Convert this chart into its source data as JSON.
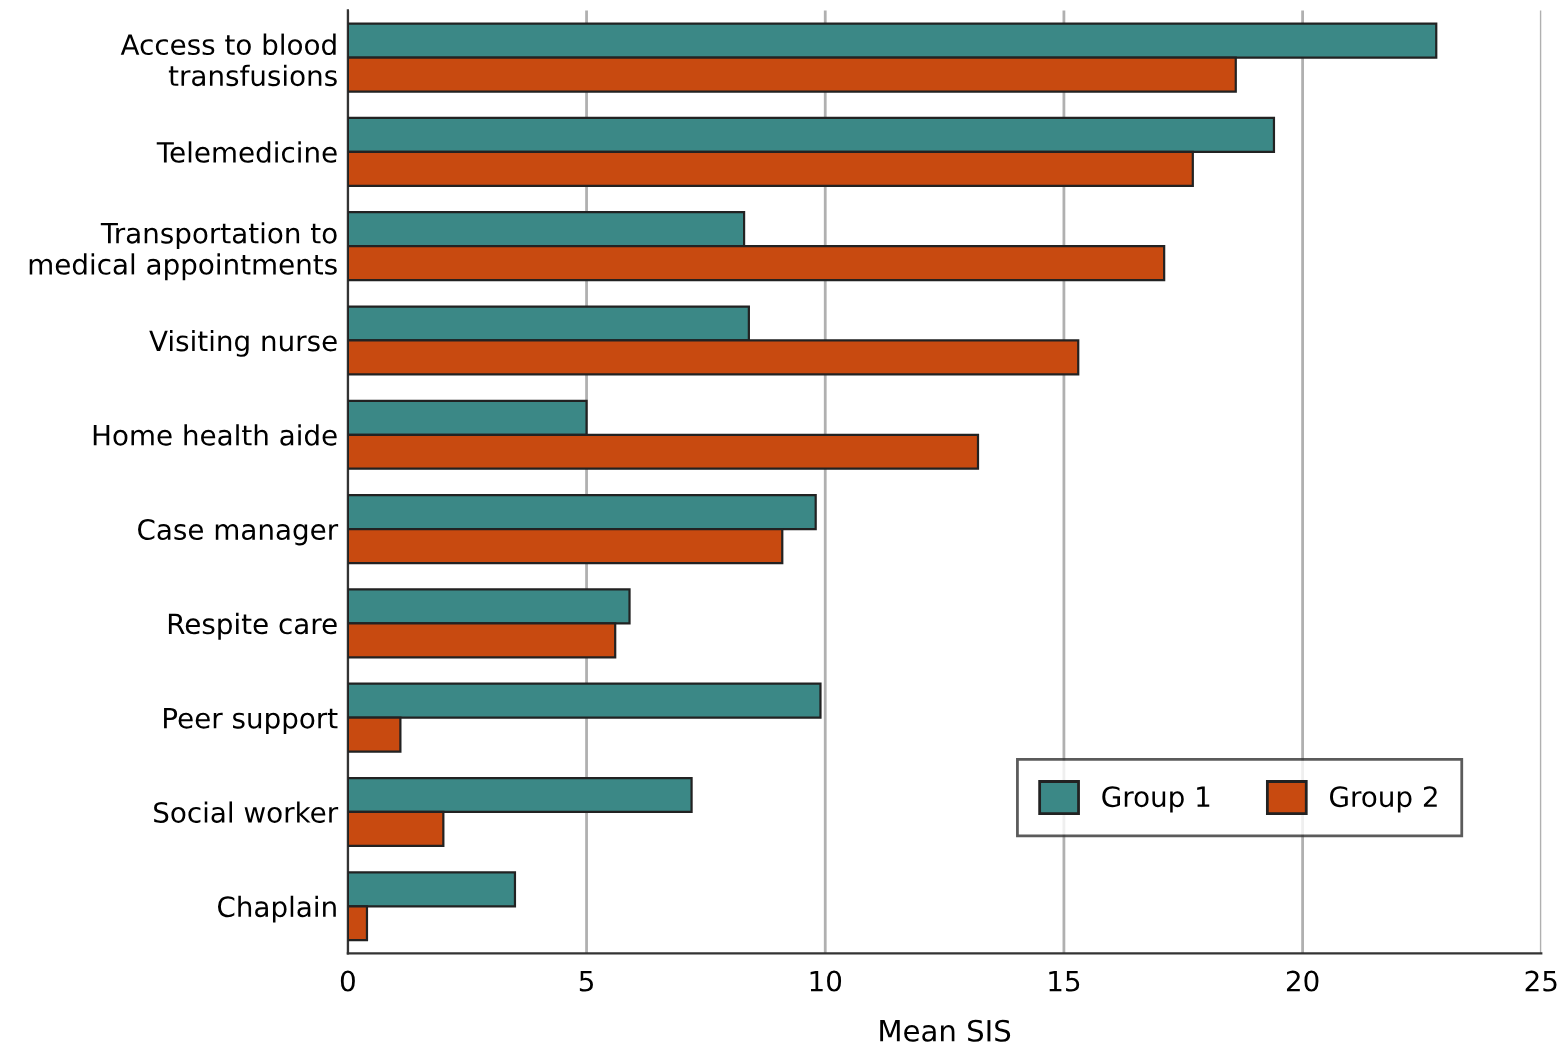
{
  "chart_data": {
    "type": "bar",
    "orientation": "horizontal",
    "xlabel": "Mean SIS",
    "categories": [
      "Access to blood\ntransfusions",
      "Telemedicine",
      "Transportation to\nmedical appointments",
      "Visiting nurse",
      "Home health aide",
      "Case manager",
      "Respite care",
      "Peer support",
      "Social worker",
      "Chaplain"
    ],
    "series": [
      {
        "name": "Group 1",
        "color": "#3b8886",
        "values": [
          22.8,
          19.4,
          8.3,
          8.4,
          5.0,
          9.8,
          5.9,
          9.9,
          7.2,
          3.5
        ]
      },
      {
        "name": "Group 2",
        "color": "#c84a10",
        "values": [
          18.6,
          17.7,
          17.1,
          15.3,
          13.2,
          9.1,
          5.6,
          1.1,
          2.0,
          0.4
        ]
      }
    ],
    "xlim": [
      0,
      25
    ],
    "xticks": [
      0,
      5,
      10,
      15,
      20,
      25
    ],
    "grid": "x",
    "legend": "bottom right"
  }
}
